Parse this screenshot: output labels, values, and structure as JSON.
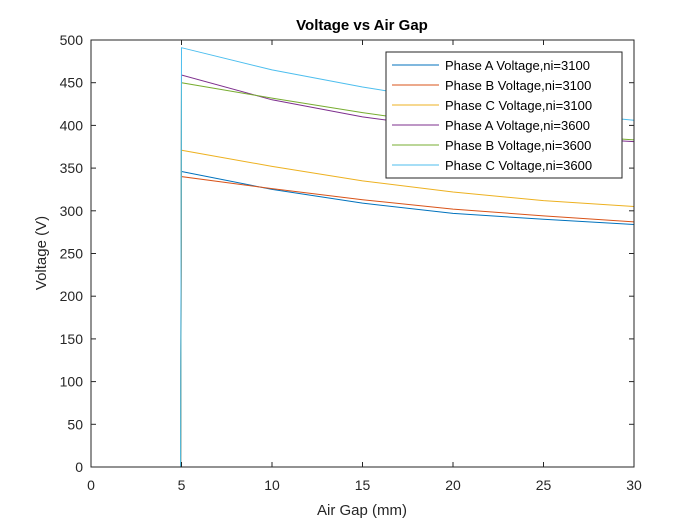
{
  "chart_data": {
    "type": "line",
    "title": "Voltage vs Air Gap",
    "xlabel": "Air Gap (mm)",
    "ylabel": "Voltage (V)",
    "xlim": [
      0,
      30
    ],
    "ylim": [
      0,
      500
    ],
    "xticks": [
      0,
      5,
      10,
      15,
      20,
      25,
      30
    ],
    "yticks": [
      0,
      50,
      100,
      150,
      200,
      250,
      300,
      350,
      400,
      450,
      500
    ],
    "grid": false,
    "legend_position": "top-right",
    "series": [
      {
        "name": "Phase A Voltage,ni=3100",
        "color": "#0072BD",
        "x": [
          0,
          4.95,
          5,
          10,
          15,
          20,
          25,
          30
        ],
        "y": [
          0,
          0,
          346,
          325,
          309,
          297,
          290,
          284
        ]
      },
      {
        "name": "Phase B Voltage,ni=3100",
        "color": "#D95319",
        "x": [
          0,
          4.95,
          5,
          10,
          15,
          20,
          25,
          30
        ],
        "y": [
          0,
          0,
          340,
          326,
          313,
          302,
          294,
          287
        ]
      },
      {
        "name": "Phase C Voltage,ni=3100",
        "color": "#EDB120",
        "x": [
          0,
          4.95,
          5,
          10,
          15,
          20,
          25,
          30
        ],
        "y": [
          0,
          0,
          371,
          352,
          335,
          322,
          312,
          305
        ]
      },
      {
        "name": "Phase A Voltage,ni=3600",
        "color": "#7E2F8E",
        "x": [
          0,
          4.95,
          5,
          10,
          15,
          20,
          25,
          30
        ],
        "y": [
          0,
          0,
          459,
          430,
          410,
          396,
          387,
          381
        ]
      },
      {
        "name": "Phase B Voltage,ni=3600",
        "color": "#77AC30",
        "x": [
          0,
          4.95,
          5,
          10,
          15,
          20,
          25,
          30
        ],
        "y": [
          0,
          0,
          450,
          432,
          415,
          400,
          390,
          383
        ]
      },
      {
        "name": "Phase C Voltage,ni=3600",
        "color": "#4DBEEE",
        "x": [
          0,
          4.95,
          5,
          10,
          15,
          20,
          25,
          30
        ],
        "y": [
          0,
          0,
          491,
          465,
          445,
          428,
          416,
          406
        ]
      }
    ]
  }
}
